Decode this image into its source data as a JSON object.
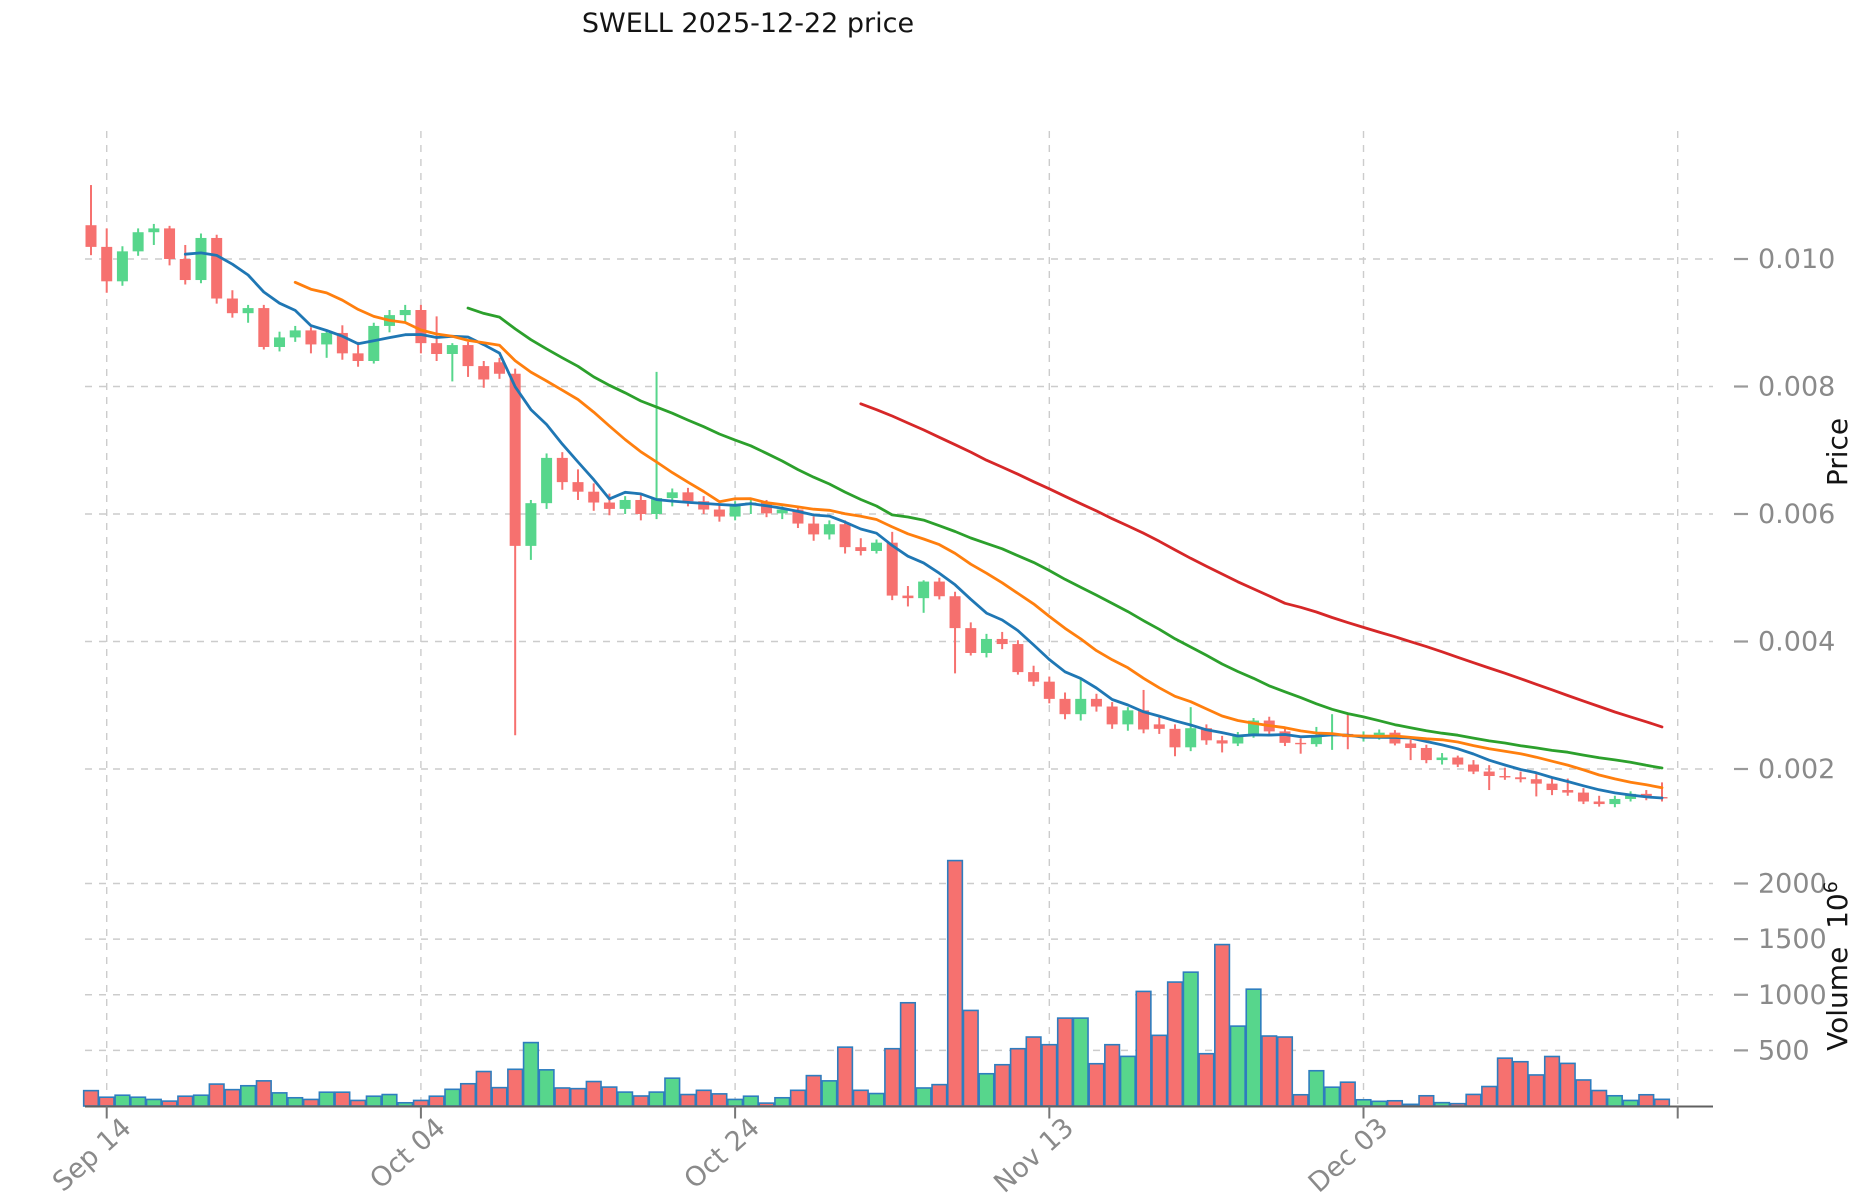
{
  "title": "SWELL  2025-12-22  price",
  "price_axis": {
    "label": "Price",
    "tick_labels": [
      "0.010",
      "0.008",
      "0.006",
      "0.004",
      "0.002"
    ],
    "tick_values": [
      0.01,
      0.008,
      0.006,
      0.004,
      0.002
    ]
  },
  "volume_axis": {
    "label": "Volume",
    "unit_base": "10",
    "unit_exponent": "6",
    "tick_labels": [
      "2000",
      "1500",
      "1000",
      "500"
    ],
    "tick_values": [
      2000,
      1500,
      1000,
      500
    ]
  },
  "x_axis": {
    "tick_labels": [
      "Sep 14",
      "Oct 04",
      "Oct 24",
      "Nov 13",
      "Dec 03"
    ],
    "tick_dates": [
      "2025-09-14",
      "2025-10-04",
      "2025-10-24",
      "2025-11-13",
      "2025-12-03"
    ]
  },
  "colors": {
    "up": "#57d68c",
    "down": "#f6716f",
    "volume_bar_edge": "#2e7dbf",
    "grid": "#cccccc",
    "tick_text": "#8a8a8a",
    "axis_spine": "#606060"
  },
  "chart_data": {
    "type": "candlestick+volume",
    "symbol": "SWELL",
    "as_of_date": "2025-12-22",
    "price_scale": 1e-05,
    "volume_unit": 1000000,
    "grid": true,
    "price_ylim": [
      0.00132,
      0.01201
    ],
    "volume_ylim": [
      0,
      2640
    ],
    "moving_averages": [
      {
        "name": "MA7",
        "window": 7,
        "color": "#1f77b4"
      },
      {
        "name": "MA14",
        "window": 14,
        "color": "#ff7f0e"
      },
      {
        "name": "MA25",
        "window": 25,
        "color": "#2ca02c"
      },
      {
        "name": "MA50",
        "window": 50,
        "color": "#d62728"
      }
    ],
    "dates": [
      "2025-09-13",
      "2025-09-14",
      "2025-09-15",
      "2025-09-16",
      "2025-09-17",
      "2025-09-18",
      "2025-09-19",
      "2025-09-20",
      "2025-09-21",
      "2025-09-22",
      "2025-09-23",
      "2025-09-24",
      "2025-09-25",
      "2025-09-26",
      "2025-09-27",
      "2025-09-28",
      "2025-09-29",
      "2025-09-30",
      "2025-10-01",
      "2025-10-02",
      "2025-10-03",
      "2025-10-04",
      "2025-10-05",
      "2025-10-06",
      "2025-10-07",
      "2025-10-08",
      "2025-10-09",
      "2025-10-10",
      "2025-10-11",
      "2025-10-12",
      "2025-10-13",
      "2025-10-14",
      "2025-10-15",
      "2025-10-16",
      "2025-10-17",
      "2025-10-18",
      "2025-10-19",
      "2025-10-20",
      "2025-10-21",
      "2025-10-22",
      "2025-10-23",
      "2025-10-24",
      "2025-10-25",
      "2025-10-26",
      "2025-10-27",
      "2025-10-28",
      "2025-10-29",
      "2025-10-30",
      "2025-10-31",
      "2025-11-01",
      "2025-11-02",
      "2025-11-03",
      "2025-11-04",
      "2025-11-05",
      "2025-11-06",
      "2025-11-07",
      "2025-11-08",
      "2025-11-09",
      "2025-11-10",
      "2025-11-11",
      "2025-11-12",
      "2025-11-13",
      "2025-11-14",
      "2025-11-15",
      "2025-11-16",
      "2025-11-17",
      "2025-11-18",
      "2025-11-19",
      "2025-11-20",
      "2025-11-21",
      "2025-11-22",
      "2025-11-23",
      "2025-11-24",
      "2025-11-25",
      "2025-11-26",
      "2025-11-27",
      "2025-11-28",
      "2025-11-29",
      "2025-11-30",
      "2025-12-01",
      "2025-12-02",
      "2025-12-03",
      "2025-12-04",
      "2025-12-05",
      "2025-12-06",
      "2025-12-07",
      "2025-12-08",
      "2025-12-09",
      "2025-12-10",
      "2025-12-11",
      "2025-12-12",
      "2025-12-13",
      "2025-12-14",
      "2025-12-15",
      "2025-12-16",
      "2025-12-17",
      "2025-12-18",
      "2025-12-19",
      "2025-12-20",
      "2025-12-21",
      "2025-12-22"
    ],
    "open": [
      1053,
      1019,
      965,
      1012,
      1042,
      1048,
      1000,
      967,
      1033,
      938,
      915,
      923,
      862,
      877,
      888,
      866,
      884,
      852,
      840,
      895,
      912,
      920,
      868,
      851,
      865,
      832,
      838,
      820,
      550,
      617,
      688,
      650,
      635,
      618,
      608,
      622,
      600,
      625,
      634,
      620,
      607,
      596,
      614,
      618,
      601,
      607,
      585,
      568,
      584,
      548,
      542,
      555,
      472,
      468,
      494,
      471,
      421,
      382,
      404,
      396,
      352,
      337,
      310,
      286,
      310,
      298,
      270,
      292,
      270,
      263,
      234,
      264,
      245,
      240,
      254,
      276,
      259,
      241,
      239,
      252,
      255,
      250,
      253,
      257,
      240,
      233,
      214,
      218,
      207,
      196,
      189,
      187,
      184,
      177,
      167,
      163,
      149,
      145,
      153,
      161,
      156
    ],
    "high": [
      1116,
      1048,
      1020,
      1048,
      1055,
      1052,
      1022,
      1040,
      1038,
      951,
      928,
      928,
      886,
      895,
      893,
      888,
      896,
      870,
      900,
      920,
      928,
      928,
      910,
      868,
      870,
      840,
      845,
      828,
      622,
      695,
      697,
      670,
      648,
      632,
      628,
      630,
      823,
      640,
      641,
      628,
      616,
      620,
      622,
      622,
      612,
      610,
      596,
      590,
      590,
      562,
      560,
      572,
      487,
      496,
      500,
      478,
      430,
      412,
      415,
      402,
      362,
      345,
      320,
      343,
      318,
      305,
      297,
      324,
      282,
      270,
      297,
      270,
      252,
      258,
      280,
      282,
      264,
      248,
      266,
      286,
      288,
      259,
      262,
      261,
      246,
      238,
      225,
      221,
      214,
      206,
      202,
      196,
      192,
      187,
      185,
      170,
      158,
      158,
      165,
      167,
      179
    ],
    "low": [
      1006,
      947,
      958,
      1005,
      1022,
      990,
      960,
      962,
      930,
      908,
      900,
      858,
      855,
      870,
      852,
      845,
      842,
      831,
      836,
      885,
      900,
      852,
      840,
      808,
      815,
      798,
      812,
      253,
      528,
      608,
      638,
      622,
      605,
      598,
      600,
      590,
      592,
      612,
      612,
      600,
      588,
      590,
      600,
      595,
      592,
      578,
      558,
      560,
      538,
      535,
      538,
      465,
      455,
      445,
      466,
      350,
      378,
      375,
      388,
      348,
      330,
      303,
      278,
      276,
      290,
      263,
      260,
      256,
      255,
      220,
      228,
      238,
      226,
      236,
      249,
      254,
      236,
      224,
      235,
      230,
      231,
      243,
      246,
      237,
      214,
      209,
      207,
      203,
      192,
      167,
      183,
      179,
      157,
      159,
      158,
      145,
      141,
      140,
      149,
      151,
      149
    ],
    "close": [
      1019,
      965,
      1012,
      1042,
      1048,
      1000,
      967,
      1033,
      938,
      915,
      923,
      862,
      877,
      888,
      866,
      884,
      852,
      840,
      895,
      912,
      920,
      868,
      851,
      865,
      832,
      811,
      820,
      550,
      617,
      688,
      650,
      635,
      618,
      608,
      622,
      600,
      625,
      634,
      620,
      607,
      596,
      614,
      618,
      601,
      607,
      585,
      568,
      584,
      548,
      542,
      555,
      472,
      468,
      494,
      471,
      421,
      382,
      404,
      396,
      352,
      337,
      310,
      286,
      310,
      298,
      270,
      292,
      262,
      263,
      234,
      264,
      245,
      240,
      254,
      276,
      259,
      241,
      239,
      252,
      255,
      250,
      253,
      257,
      240,
      233,
      214,
      218,
      207,
      196,
      189,
      187,
      184,
      177,
      167,
      163,
      149,
      145,
      153,
      161,
      156,
      155
    ],
    "volume": [
      138,
      79,
      97,
      79,
      59,
      44,
      88,
      97,
      197,
      147,
      182,
      226,
      118,
      74,
      59,
      124,
      124,
      50,
      88,
      103,
      29,
      50,
      88,
      150,
      200,
      310,
      165,
      330,
      570,
      325,
      162,
      156,
      220,
      170,
      125,
      90,
      125,
      250,
      103,
      141,
      109,
      59,
      88,
      26,
      74,
      141,
      273,
      226,
      529,
      141,
      112,
      515,
      928,
      162,
      192,
      2206,
      859,
      290,
      371,
      515,
      620,
      551,
      790,
      790,
      380,
      551,
      446,
      1030,
      635,
      1114,
      1203,
      470,
      1451,
      718,
      1050,
      629,
      620,
      101,
      317,
      169,
      214,
      56,
      42,
      47,
      15,
      92,
      30,
      21,
      104,
      175,
      430,
      398,
      279,
      445,
      383,
      234,
      139,
      92,
      50,
      101,
      60
    ]
  }
}
